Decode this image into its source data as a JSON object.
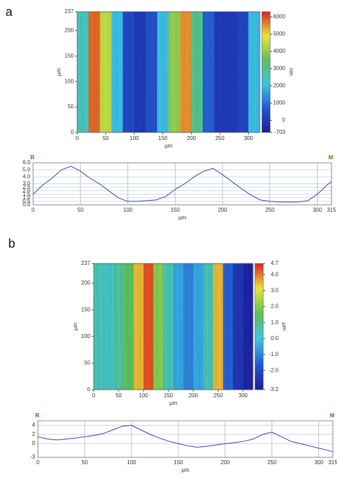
{
  "chart_data": [
    {
      "type": "heatmap",
      "panel_label": "a",
      "xlabel": "µm",
      "ylabel": "µm",
      "colorbar_label": "nm",
      "x": [
        10,
        30,
        50,
        70,
        90,
        110,
        130,
        150,
        170,
        190,
        210,
        230,
        250,
        270,
        290,
        310
      ],
      "values": [
        2500,
        5800,
        4500,
        2000,
        300,
        0,
        500,
        2000,
        4000,
        5500,
        3000,
        800,
        0,
        0,
        200,
        2000
      ],
      "xlim": [
        0,
        320
      ],
      "xticks": [
        0,
        50,
        100,
        150,
        200,
        250,
        300
      ],
      "ylim": [
        0,
        237
      ],
      "yticks": [
        0,
        50,
        100,
        150,
        200,
        237
      ],
      "zlim": [
        -703,
        6300
      ],
      "zticks": [
        -703,
        0,
        1000,
        2000,
        3000,
        4000,
        5000,
        6000
      ],
      "colormap": [
        "#1c1c9c",
        "#2258d0",
        "#3ec4e4",
        "#5cbf5a",
        "#e6e63a",
        "#e02020"
      ]
    },
    {
      "type": "line",
      "xlabel": "µm",
      "left_marker": "R",
      "right_marker": "M",
      "color": "#3a3ab4",
      "grid": true,
      "x": [
        0,
        10,
        20,
        30,
        40,
        50,
        60,
        70,
        80,
        90,
        100,
        110,
        120,
        130,
        140,
        150,
        160,
        170,
        180,
        190,
        200,
        210,
        220,
        230,
        240,
        250,
        260,
        270,
        280,
        290,
        300,
        310,
        315
      ],
      "values": [
        1.5,
        2.8,
        3.8,
        5.0,
        5.5,
        4.8,
        3.8,
        3.0,
        2.0,
        1.0,
        0.5,
        0.5,
        0.6,
        0.7,
        1.2,
        2.2,
        3.0,
        4.0,
        4.8,
        5.2,
        4.3,
        3.3,
        2.3,
        1.4,
        0.7,
        0.5,
        0.4,
        0.4,
        0.4,
        0.6,
        1.5,
        2.8,
        3.3
      ],
      "xlim": [
        0,
        315
      ],
      "xticks": [
        0,
        50,
        100,
        150,
        200,
        250,
        300,
        315
      ],
      "ylim": [
        0,
        6
      ],
      "yticks": [
        {
          "value": 0,
          "label": "0.0"
        },
        {
          "value": 0.5,
          "label": "0.5"
        },
        {
          "value": 1,
          "label": "1.0"
        },
        {
          "value": 1.5,
          "label": "1.5"
        },
        {
          "value": 2,
          "label": "2.0"
        },
        {
          "value": 2.5,
          "label": "2.5"
        },
        {
          "value": 3,
          "label": "3.0"
        },
        {
          "value": 4,
          "label": "4.0"
        },
        {
          "value": 5,
          "label": "5.0"
        },
        {
          "value": 6,
          "label": "6.0"
        }
      ]
    },
    {
      "type": "heatmap",
      "panel_label": "b",
      "xlabel": "µm",
      "ylabel": "µm",
      "colorbar_label": "µm",
      "x": [
        10,
        30,
        50,
        70,
        90,
        110,
        130,
        150,
        170,
        190,
        210,
        230,
        250,
        270,
        290,
        310
      ],
      "values": [
        0.5,
        0.3,
        0.8,
        1.5,
        3.5,
        4.3,
        2.0,
        0.5,
        -0.5,
        -1.0,
        -0.5,
        0.5,
        3.5,
        -1.5,
        -2.5,
        -3.0
      ],
      "xlim": [
        0,
        320
      ],
      "xticks": [
        0,
        50,
        100,
        150,
        200,
        250,
        300
      ],
      "ylim": [
        0,
        237
      ],
      "yticks": [
        0,
        50,
        100,
        150,
        200,
        237
      ],
      "zlim": [
        -3.2,
        4.7
      ],
      "zticks": [
        -3.2,
        {
          "value": -2,
          "label": "-2.0"
        },
        {
          "value": -1,
          "label": "-1.0"
        },
        {
          "value": 0,
          "label": "0.0"
        },
        {
          "value": 1,
          "label": "1.0"
        },
        {
          "value": 2,
          "label": "2.0"
        },
        {
          "value": 3,
          "label": "3.0"
        },
        {
          "value": 4,
          "label": "4.0"
        },
        4.7
      ],
      "colormap": [
        "#1c1c9c",
        "#2258d0",
        "#3ec4e4",
        "#5cbf5a",
        "#e6e63a",
        "#e02020"
      ]
    },
    {
      "type": "line",
      "xlabel": "µm",
      "left_marker": "R",
      "right_marker": "M",
      "color": "#3a3ab4",
      "grid": true,
      "x": [
        0,
        10,
        20,
        30,
        40,
        50,
        60,
        70,
        80,
        90,
        100,
        110,
        120,
        130,
        140,
        150,
        160,
        170,
        180,
        190,
        200,
        210,
        220,
        230,
        240,
        250,
        260,
        270,
        280,
        290,
        300,
        310,
        315
      ],
      "values": [
        1.5,
        1.0,
        0.8,
        1.0,
        1.2,
        1.5,
        1.8,
        2.2,
        3.0,
        3.8,
        4.0,
        3.0,
        2.0,
        1.2,
        0.5,
        0,
        -0.5,
        -0.8,
        -0.6,
        -0.3,
        0,
        0.2,
        0.5,
        1.0,
        2.0,
        2.5,
        1.5,
        0.5,
        0,
        -0.5,
        -1.0,
        -1.5,
        -1.8
      ],
      "xlim": [
        0,
        315
      ],
      "xticks": [
        0,
        50,
        100,
        150,
        200,
        250,
        300,
        315
      ],
      "ylim": [
        -3,
        5
      ],
      "yticks": [
        -3,
        0,
        2,
        4
      ]
    }
  ]
}
